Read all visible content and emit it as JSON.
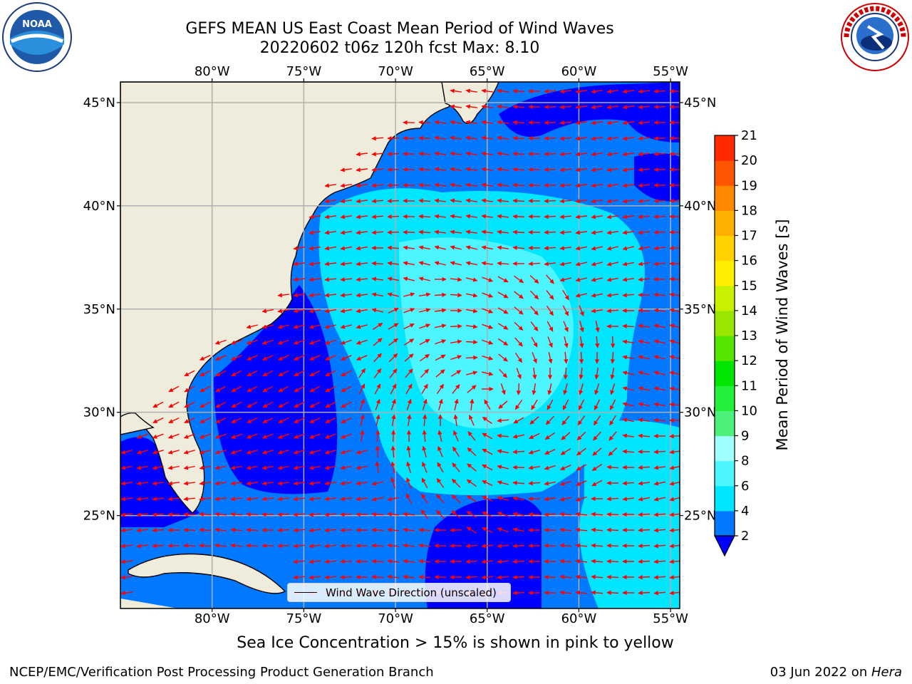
{
  "title": "GEFS MEAN US East Coast Mean Period of Wind Waves",
  "subtitle": "20220602 t06z 120h fcst   Max: 8.10",
  "logos": {
    "left": "NOAA",
    "right": "NATIONAL WEATHER SERVICE"
  },
  "map": {
    "lon_ticks": [
      "80°W",
      "75°W",
      "70°W",
      "65°W",
      "60°W",
      "55°W"
    ],
    "lat_ticks": [
      "45°N",
      "40°N",
      "35°N",
      "30°N",
      "25°N"
    ],
    "lon_range": [
      -85,
      -54.5
    ],
    "lat_range": [
      20.5,
      46
    ],
    "land_color": "#efecdb",
    "grid_color": "#b0b0b0",
    "arrow_color": "#ff0000",
    "legend_label": "Wind Wave Direction (unscaled)"
  },
  "colorbar": {
    "label": "Mean Period of Wind Waves [s]",
    "ticks": [
      "2",
      "4",
      "6",
      "8",
      "9",
      "10",
      "11",
      "12",
      "13",
      "14",
      "15",
      "16",
      "17",
      "18",
      "19",
      "20",
      "21"
    ],
    "colors": [
      "#0000ff",
      "#0078ff",
      "#00e6ff",
      "#4cf5ff",
      "#a0ffff",
      "#4cf07a",
      "#22f03a",
      "#00e600",
      "#55e600",
      "#9be600",
      "#c8f000",
      "#ffee00",
      "#ffd200",
      "#ffb000",
      "#ff8800",
      "#ff5500",
      "#ff2a00",
      "#ff0000"
    ]
  },
  "note": "Sea Ice Concentration > 15% is shown in pink to yellow",
  "footer": {
    "left": "NCEP/EMC/Verification Post Processing Product Generation Branch",
    "date": "03 Jun 2022 on ",
    "machine": "Hera"
  }
}
